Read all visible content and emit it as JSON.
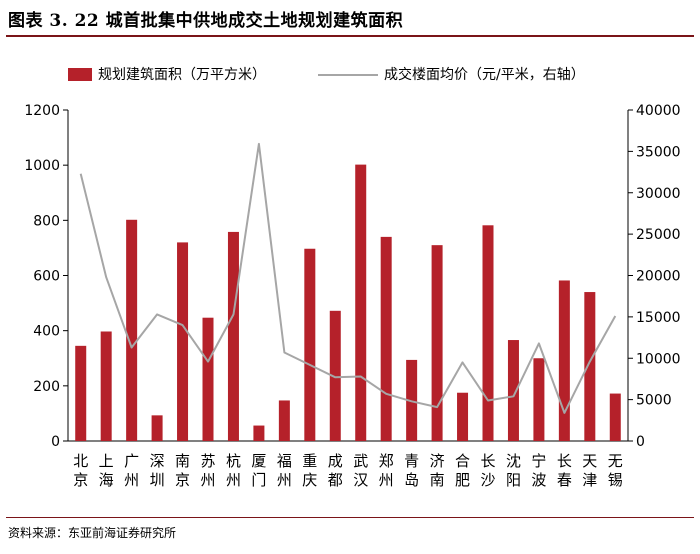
{
  "figure": {
    "title": "图表 3.  22 城首批集中供地成交土地规划建筑面积",
    "source": "资料来源：东亚前海证券研究所"
  },
  "chart_data": {
    "type": "bar",
    "categories": [
      "北京",
      "上海",
      "广州",
      "深圳",
      "南京",
      "苏州",
      "杭州",
      "厦门",
      "福州",
      "重庆",
      "成都",
      "武汉",
      "郑州",
      "青岛",
      "济南",
      "合肥",
      "长沙",
      "沈阳",
      "宁波",
      "长春",
      "天津",
      "无锡"
    ],
    "series": [
      {
        "name": "规划建筑面积（万平方米）",
        "type": "bar",
        "axis": "left",
        "color": "#b5212a",
        "values": [
          345,
          397,
          802,
          93,
          720,
          447,
          758,
          56,
          147,
          697,
          472,
          1002,
          740,
          294,
          710,
          175,
          782,
          366,
          300,
          582,
          540,
          172
        ]
      },
      {
        "name": "成交楼面均价（元/平米，右轴）",
        "type": "line",
        "axis": "right",
        "color": "#a6a6a6",
        "values": [
          32300,
          19800,
          11300,
          15300,
          14000,
          9600,
          15300,
          35900,
          10700,
          9200,
          7700,
          7800,
          5700,
          4800,
          4100,
          9500,
          4900,
          5400,
          11800,
          3400,
          9600,
          15100
        ]
      }
    ],
    "ylim_left": [
      0,
      1200
    ],
    "yticks_left": [
      0,
      200,
      400,
      600,
      800,
      1000,
      1200
    ],
    "ylim_right": [
      0,
      40000
    ],
    "yticks_right": [
      0,
      5000,
      10000,
      15000,
      20000,
      25000,
      30000,
      35000,
      40000
    ],
    "grid": false,
    "legend": "top"
  }
}
